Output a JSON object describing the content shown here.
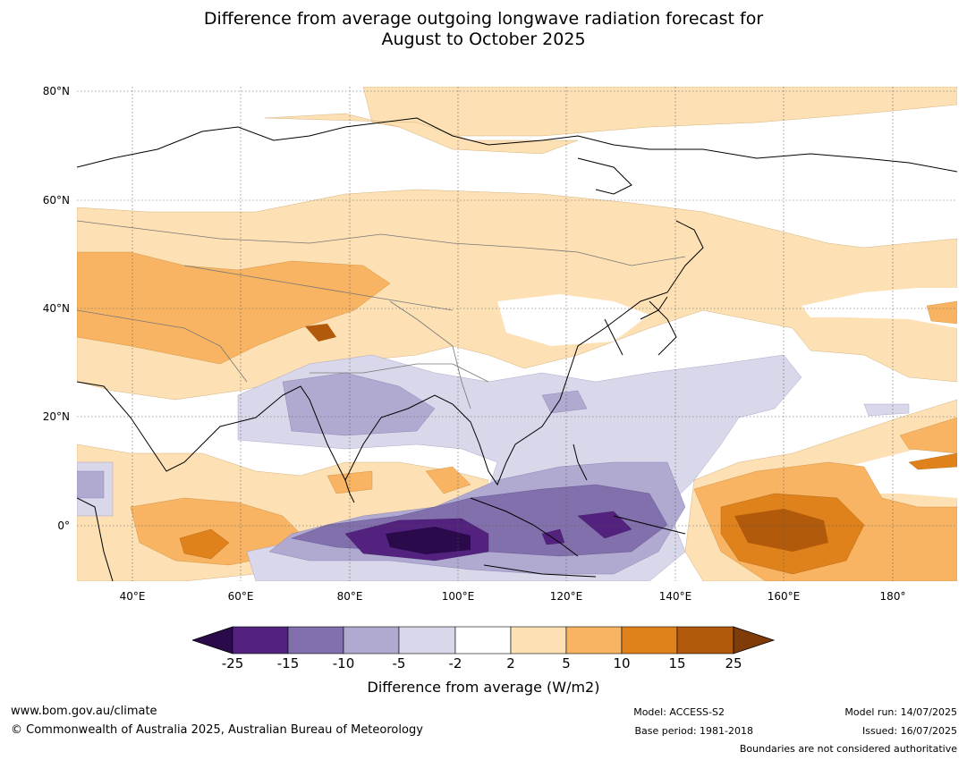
{
  "title": {
    "line1": "Difference from average outgoing longwave radiation forecast for",
    "line2": "August to October 2025"
  },
  "map": {
    "lat_ticks": [
      "80°N",
      "60°N",
      "40°N",
      "20°N",
      "0°"
    ],
    "lon_ticks": [
      "40°E",
      "60°E",
      "80°E",
      "100°E",
      "120°E",
      "140°E",
      "160°E",
      "180°"
    ],
    "extent": {
      "lon": [
        30,
        192
      ],
      "lat": [
        -10,
        81
      ]
    },
    "gridlines": "dotted"
  },
  "colorbar": {
    "title": "Difference from average (W/m2)",
    "labels": [
      "-25",
      "-15",
      "-10",
      "-5",
      "-2",
      "2",
      "5",
      "10",
      "15",
      "25"
    ],
    "colors": {
      "lt_-25": "#2a0a4a",
      "-25_-15": "#52227e",
      "-15_-10": "#8170ac",
      "-10_-5": "#b0aad1",
      "-5_-2": "#d9d8ea",
      "-2_2": "#ffffff",
      "2_5": "#fde0b4",
      "5_10": "#f8b462",
      "10_15": "#e0821b",
      "15_25": "#b15a0b",
      "gt_25": "#7f3b08"
    }
  },
  "footer": {
    "website": "www.bom.gov.au/climate",
    "copyright": "© Commonwealth of Australia 2025, Australian Bureau of Meteorology",
    "model": "Model: ACCESS-S2",
    "base_period": "Base period: 1981-2018",
    "model_run": "Model run: 14/07/2025",
    "issued": "Issued: 16/07/2025",
    "disclaimer": "Boundaries are not considered authoritative"
  }
}
